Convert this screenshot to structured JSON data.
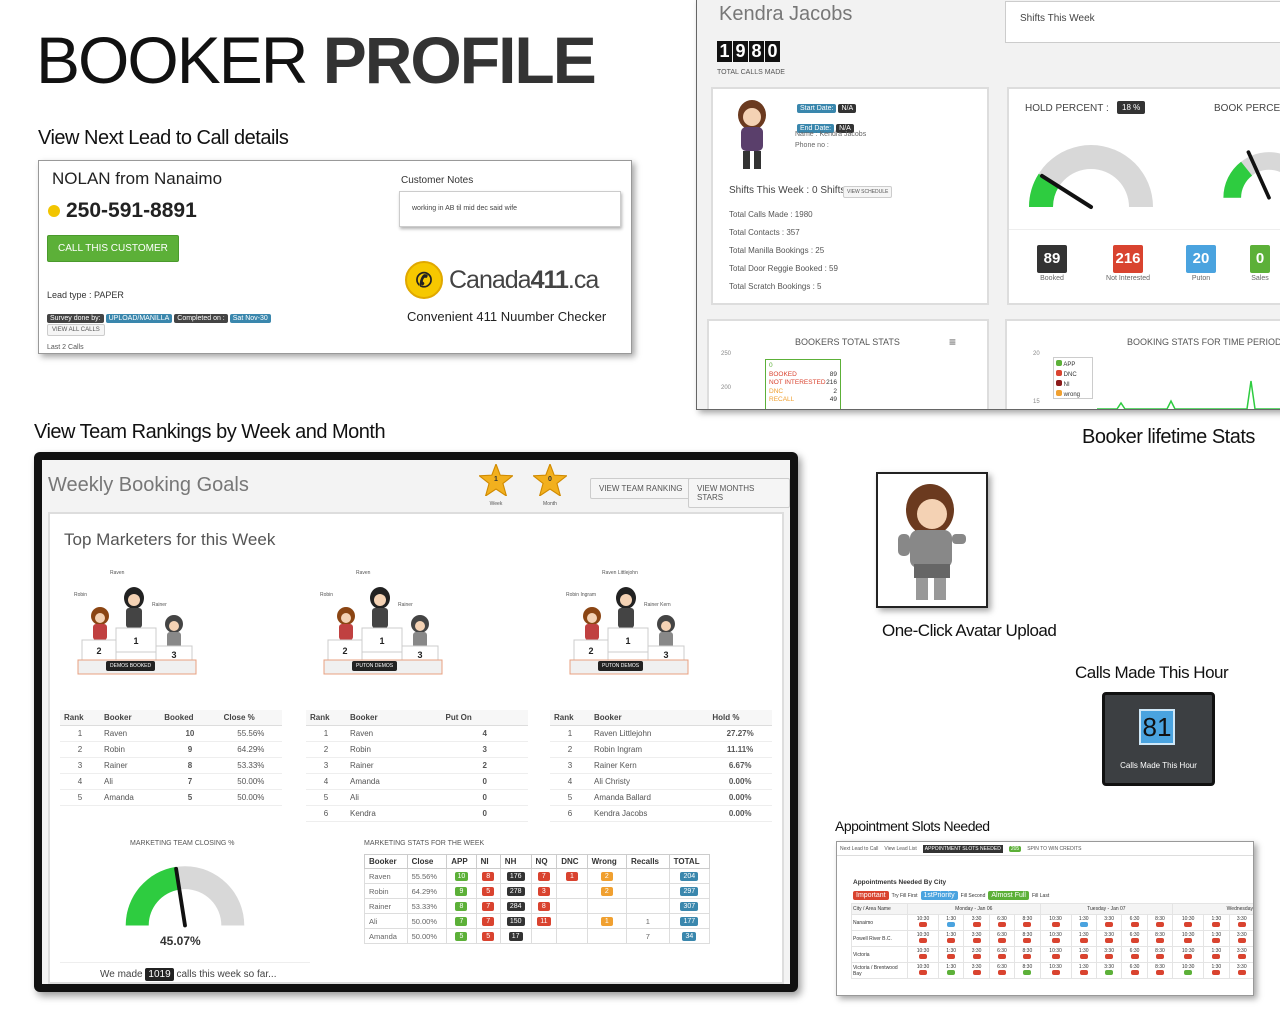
{
  "hero": {
    "word1": "BOOKER",
    "word2": "PROFILE"
  },
  "captions": {
    "next_lead": "View Next Lead to Call details",
    "rankings": "View Team Rankings by Week and Month",
    "lifetime": "Booker lifetime Stats",
    "avatar": "One-Click Avatar Upload",
    "calls_hour": "Calls Made This Hour",
    "appointments": "Appointment Slots Needed"
  },
  "lead": {
    "name": "NOLAN from Nanaimo",
    "phone": "250-591-8891",
    "call_button": "CALL THIS CUSTOMER",
    "lead_type": "Lead type : PAPER",
    "badges": [
      "Survey done by:",
      "UPLOAD/MANILLA",
      "Completed on :",
      "Sat Nov-30"
    ],
    "view_calls": "VIEW ALL CALLS",
    "last_calls": "Last 2 Calls",
    "notes_title": "Customer Notes",
    "notes_text": "working in AB til mid dec said wife",
    "logo_text": "Canada",
    "logo_num": "411",
    "logo_tld": ".ca",
    "checker": "Convenient 411 Nuumber Checker"
  },
  "profile": {
    "name": "Kendra Jacobs",
    "counter": [
      "1",
      "9",
      "8",
      "0"
    ],
    "counter_label": "TOTAL CALLS MADE",
    "shifts_box": "Shifts This Week",
    "start_label": "Start Date:",
    "start_val": "N/A",
    "end_label": "End Date:",
    "end_val": "N/A",
    "name_line": "Name : Kendra Jacobs",
    "phone_line": "Phone no :",
    "shifts_line": "Shifts This Week : 0 Shifts",
    "schedule_btn": "VIEW SCHEDULE",
    "stats": [
      "Total Calls Made : 1980",
      "Total Contacts : 357",
      "Total Manilla Bookings : 25",
      "Total Door Reggie Booked : 59",
      "Total Scratch Bookings : 5"
    ],
    "hold_label": "HOLD PERCENT :",
    "hold_val": "18 %",
    "book_label": "BOOK PERCENT",
    "tiles": [
      {
        "val": "89",
        "label": "Booked",
        "color": "#333333"
      },
      {
        "val": "216",
        "label": "Not Interested",
        "color": "#d9432f"
      },
      {
        "val": "20",
        "label": "Puton",
        "color": "#4aa3df"
      },
      {
        "val": "0",
        "label": "Sales",
        "color": "#5cb038"
      }
    ],
    "total_stats_title": "BOOKERS TOTAL STATS",
    "total_ticks": [
      "250",
      "200"
    ],
    "total_legend": [
      {
        "label": "BOOKED",
        "val": "89"
      },
      {
        "label": "NOT INTERESTED",
        "val": "216"
      },
      {
        "label": "DNC",
        "val": "2"
      },
      {
        "label": "RECALL",
        "val": "49"
      }
    ],
    "legend_zero": "0",
    "period_title": "BOOKING STATS FOR TIME PERIOD",
    "period_ticks": [
      "20",
      "15"
    ],
    "period_legend": [
      "APP",
      "DNC",
      "NI",
      "wrong"
    ]
  },
  "weekly": {
    "title": "Weekly Booking Goals",
    "stars": [
      {
        "num": "1",
        "label": "Week"
      },
      {
        "num": "0",
        "label": "Month"
      }
    ],
    "btn_team": "VIEW TEAM RANKING",
    "btn_months": "VIEW MONTHS STARS",
    "top_title": "Top Marketers for this Week",
    "podiums": [
      {
        "first": "Raven",
        "second": "Robin",
        "third": "Rainer",
        "label": "DEMOS BOOKED"
      },
      {
        "first": "Raven",
        "second": "Robin",
        "third": "Rainer",
        "label": "PUTON DEMOS"
      },
      {
        "first": "Raven Littlejohn",
        "second": "Robin Ingram",
        "third": "Rainer Kern",
        "label": "PUTON DEMOS"
      }
    ],
    "table1": {
      "headers": [
        "Rank",
        "Booker",
        "Booked",
        "Close %"
      ],
      "rows": [
        [
          "1",
          "Raven",
          "10",
          "55.56%"
        ],
        [
          "2",
          "Robin",
          "9",
          "64.29%"
        ],
        [
          "3",
          "Rainer",
          "8",
          "53.33%"
        ],
        [
          "4",
          "Ali",
          "7",
          "50.00%"
        ],
        [
          "5",
          "Amanda",
          "5",
          "50.00%"
        ]
      ]
    },
    "table2": {
      "headers": [
        "Rank",
        "Booker",
        "Put On"
      ],
      "rows": [
        [
          "1",
          "Raven",
          "4"
        ],
        [
          "2",
          "Robin",
          "3"
        ],
        [
          "3",
          "Rainer",
          "2"
        ],
        [
          "4",
          "Amanda",
          "0"
        ],
        [
          "5",
          "Ali",
          "0"
        ],
        [
          "6",
          "Kendra",
          "0"
        ]
      ]
    },
    "table3": {
      "headers": [
        "Rank",
        "Booker",
        "Hold %"
      ],
      "rows": [
        [
          "1",
          "Raven Littlejohn",
          "27.27%"
        ],
        [
          "2",
          "Robin Ingram",
          "11.11%"
        ],
        [
          "3",
          "Rainer Kern",
          "6.67%"
        ],
        [
          "4",
          "Ali Christy",
          "0.00%"
        ],
        [
          "5",
          "Amanda Ballard",
          "0.00%"
        ],
        [
          "6",
          "Kendra Jacobs",
          "0.00%"
        ]
      ]
    },
    "closing_title": "MARKETING TEAM CLOSING %",
    "closing_val": "45.07%",
    "closing_pct": 45.07,
    "made_pre": "We made",
    "made_val": "1019",
    "made_post": "calls this week so far...",
    "ms_title": "MARKETING STATS FOR THE WEEK",
    "ms_headers": [
      "Booker",
      "Close",
      "APP",
      "NI",
      "NH",
      "NQ",
      "DNC",
      "Wrong",
      "Recalls",
      "TOTAL"
    ],
    "ms_rows": [
      {
        "booker": "Raven",
        "close": "55.56%",
        "app": "10",
        "ni": "8",
        "nh": "176",
        "nq": "7",
        "dnc": "1",
        "wrong": "2",
        "recalls": "",
        "total": "204"
      },
      {
        "booker": "Robin",
        "close": "64.29%",
        "app": "9",
        "ni": "5",
        "nh": "278",
        "nq": "3",
        "dnc": "",
        "wrong": "2",
        "recalls": "",
        "total": "297"
      },
      {
        "booker": "Rainer",
        "close": "53.33%",
        "app": "8",
        "ni": "7",
        "nh": "284",
        "nq": "8",
        "dnc": "",
        "wrong": "",
        "recalls": "",
        "total": "307"
      },
      {
        "booker": "Ali",
        "close": "50.00%",
        "app": "7",
        "ni": "7",
        "nh": "150",
        "nq": "11",
        "dnc": "",
        "wrong": "1",
        "recalls": "1",
        "total": "177"
      },
      {
        "booker": "Amanda",
        "close": "50.00%",
        "app": "5",
        "ni": "5",
        "nh": "17",
        "nq": "",
        "dnc": "",
        "wrong": "",
        "recalls": "7",
        "total": "34"
      }
    ]
  },
  "calls_hour": {
    "val": "81",
    "label": "Calls Made This Hour"
  },
  "appointments": {
    "tabs": [
      "Next Lead to Call",
      "View Lead List",
      "APPOINTMENT SLOTS NEEDED",
      "SPIN TO WIN CREDITS"
    ],
    "spin_badge": "205",
    "title": "Appointments Needed By City",
    "legend": [
      {
        "tag": "Important",
        "text": "Try Fill First",
        "color": "#d9432f"
      },
      {
        "tag": "1stPriority",
        "text": "Fill Second",
        "color": "#4aa3df"
      },
      {
        "tag": "Almost Full",
        "text": "Fill Last",
        "color": "#5cb038"
      }
    ],
    "col_head": "City / Area Name",
    "days": [
      "Monday - Jan 06",
      "Tuesday - Jan 07",
      "Wednesday"
    ],
    "times": [
      "10:30",
      "1:30",
      "3:30",
      "6:30",
      "8:30"
    ],
    "cities": [
      "Nanaimo",
      "Powell River B.C.",
      "Victoria",
      "Victoria / Brentwood Bay"
    ]
  },
  "colors": {
    "green": "#5cb038",
    "red": "#d9432f",
    "blue": "#4aa3df",
    "dark": "#333333",
    "orange": "#f0a030",
    "gauge_green": "#2ecc40"
  }
}
